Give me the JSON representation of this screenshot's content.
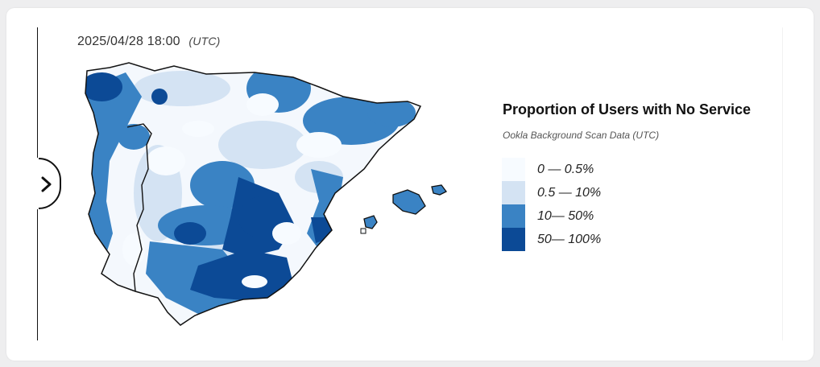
{
  "timestamp": {
    "datetime": "2025/04/28 18:00",
    "timezone": "(UTC)"
  },
  "navigation": {
    "next_icon": "chevron-right-icon"
  },
  "map": {
    "region": "Iberian Peninsula and Balearic Islands",
    "colors": {
      "water": "#ffffff",
      "outline": "#111111"
    }
  },
  "legend": {
    "title": "Proportion of Users with No Service",
    "subtitle": "Ookla Background Scan Data (UTC)",
    "items": [
      {
        "label": "0 — 0.5%",
        "color": "#f7fbff"
      },
      {
        "label": "0.5 — 10%",
        "color": "#d4e3f3"
      },
      {
        "label": "10— 50%",
        "color": "#3a83c4"
      },
      {
        "label": "50— 100%",
        "color": "#0c4a96"
      }
    ]
  }
}
